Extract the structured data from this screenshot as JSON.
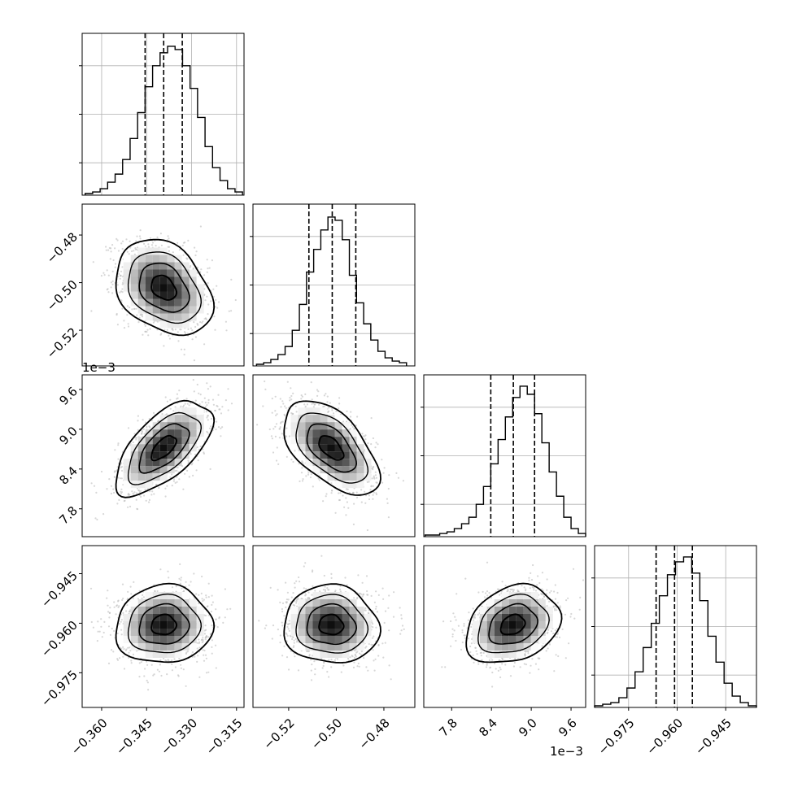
{
  "colors": {
    "axis": "#000000",
    "grid": "#b0b0b0",
    "scatter": "#bdbdbd",
    "contour": "#000000",
    "histogram": "#000000",
    "quantile": "#000000"
  },
  "figure": {
    "layout": "corner plot",
    "offset_label_row2": "1e−3",
    "offset_label_col3": "1e−3"
  },
  "chart_data": [
    {
      "type": "histogram",
      "panel": "1-1",
      "bins": [
        -0.3655,
        -0.363,
        -0.3605,
        -0.358,
        -0.3555,
        -0.353,
        -0.3505,
        -0.348,
        -0.3455,
        -0.343,
        -0.3405,
        -0.338,
        -0.3355,
        -0.333,
        -0.3305,
        -0.328,
        -0.3255,
        -0.323,
        -0.3205,
        -0.318,
        -0.3155,
        -0.313
      ],
      "counts": [
        0.01,
        0.02,
        0.04,
        0.08,
        0.13,
        0.22,
        0.35,
        0.51,
        0.67,
        0.8,
        0.88,
        0.92,
        0.9,
        0.8,
        0.66,
        0.48,
        0.3,
        0.17,
        0.09,
        0.04,
        0.02
      ],
      "quantiles": [
        -0.3455,
        -0.3393,
        -0.3331
      ],
      "xlim": [
        -0.3665,
        -0.3125
      ],
      "yticks": [
        0.2,
        0.5,
        0.8
      ],
      "grid": true
    },
    {
      "type": "scatter",
      "panel": "2-1",
      "xlim": [
        -0.3665,
        -0.3125
      ],
      "ylim": [
        -0.535,
        -0.467
      ],
      "ytick_labels": [
        "−0.48",
        "−0.50",
        "−0.52"
      ],
      "yticks": [
        -0.48,
        -0.5,
        -0.52
      ],
      "correlation": -0.3,
      "mean": [
        -0.3393,
        -0.5022
      ],
      "sd": [
        0.0075,
        0.0093
      ]
    },
    {
      "type": "histogram",
      "panel": "2-2",
      "bins": [
        -0.5335,
        -0.5305,
        -0.5275,
        -0.5245,
        -0.5215,
        -0.5185,
        -0.5155,
        -0.5125,
        -0.5095,
        -0.5065,
        -0.5035,
        -0.5005,
        -0.4975,
        -0.4945,
        -0.4915,
        -0.4885,
        -0.4855,
        -0.4825,
        -0.4795,
        -0.4765,
        -0.4735,
        -0.4705
      ],
      "counts": [
        0.01,
        0.02,
        0.04,
        0.07,
        0.12,
        0.22,
        0.38,
        0.58,
        0.72,
        0.84,
        0.92,
        0.9,
        0.78,
        0.56,
        0.39,
        0.26,
        0.16,
        0.09,
        0.05,
        0.03,
        0.02
      ],
      "quantiles": [
        -0.5115,
        -0.5017,
        -0.4918
      ],
      "xlim": [
        -0.535,
        -0.467
      ],
      "yticks": [
        0.2,
        0.5,
        0.8
      ],
      "grid": true
    },
    {
      "type": "scatter",
      "panel": "3-1",
      "xlim": [
        -0.3665,
        -0.3125
      ],
      "ylim": [
        7.38,
        9.82
      ],
      "ytick_labels": [
        "9.6",
        "9.0",
        "8.4",
        "7.8"
      ],
      "yticks": [
        9.6,
        9.0,
        8.4,
        7.8
      ],
      "correlation": 0.62,
      "mean": [
        -0.3393,
        8.72
      ],
      "sd": [
        0.0075,
        0.33
      ]
    },
    {
      "type": "scatter",
      "panel": "3-2",
      "xlim": [
        -0.535,
        -0.467
      ],
      "ylim": [
        7.38,
        9.82
      ],
      "correlation": -0.55,
      "mean": [
        -0.5022,
        8.72
      ],
      "sd": [
        0.0093,
        0.33
      ]
    },
    {
      "type": "histogram",
      "panel": "3-3",
      "bins": [
        7.4,
        7.51,
        7.62,
        7.73,
        7.84,
        7.95,
        8.06,
        8.17,
        8.28,
        8.39,
        8.5,
        8.61,
        8.72,
        8.83,
        8.94,
        9.05,
        9.16,
        9.27,
        9.38,
        9.49,
        9.6,
        9.71,
        9.82
      ],
      "counts": [
        0.01,
        0.01,
        0.02,
        0.03,
        0.05,
        0.08,
        0.12,
        0.2,
        0.31,
        0.45,
        0.6,
        0.74,
        0.86,
        0.93,
        0.88,
        0.76,
        0.58,
        0.4,
        0.25,
        0.12,
        0.05,
        0.02
      ],
      "quantiles": [
        8.39,
        8.73,
        9.05
      ],
      "xlim": [
        7.38,
        9.82
      ],
      "yticks": [
        0.2,
        0.5,
        0.8
      ],
      "grid": true
    },
    {
      "type": "scatter",
      "panel": "4-1",
      "xlim": [
        -0.3665,
        -0.3125
      ],
      "ylim": [
        -0.9855,
        -0.9365
      ],
      "ytick_labels": [
        "−0.945",
        "−0.960",
        "−0.975"
      ],
      "yticks": [
        -0.945,
        -0.96,
        -0.975
      ],
      "correlation": 0.05,
      "mean": [
        -0.3393,
        -0.9605
      ],
      "sd": [
        0.0075,
        0.0055
      ]
    },
    {
      "type": "scatter",
      "panel": "4-2",
      "xlim": [
        -0.535,
        -0.467
      ],
      "ylim": [
        -0.9855,
        -0.9365
      ],
      "xtick_labels": [
        "−0.52",
        "−0.50",
        "−0.48"
      ],
      "xticks": [
        -0.52,
        -0.5,
        -0.48
      ],
      "correlation": -0.05,
      "mean": [
        -0.5022,
        -0.9605
      ],
      "sd": [
        0.0093,
        0.0055
      ]
    },
    {
      "type": "scatter",
      "panel": "4-3",
      "xlim": [
        7.38,
        9.82
      ],
      "ylim": [
        -0.9855,
        -0.9365
      ],
      "xtick_labels": [
        "7.8",
        "8.4",
        "9.0",
        "9.6"
      ],
      "xticks": [
        7.8,
        8.4,
        9.0,
        9.6
      ],
      "correlation": 0.25,
      "mean": [
        8.72,
        -0.9605
      ],
      "sd": [
        0.33,
        0.0055
      ]
    },
    {
      "type": "histogram",
      "panel": "4-4",
      "bins": [
        -0.9855,
        -0.983,
        -0.9805,
        -0.978,
        -0.9755,
        -0.973,
        -0.9705,
        -0.968,
        -0.9655,
        -0.963,
        -0.9605,
        -0.958,
        -0.9555,
        -0.953,
        -0.9505,
        -0.948,
        -0.9455,
        -0.943,
        -0.9405,
        -0.938,
        -0.9355
      ],
      "counts": [
        0.01,
        0.02,
        0.03,
        0.06,
        0.12,
        0.22,
        0.37,
        0.52,
        0.69,
        0.82,
        0.9,
        0.93,
        0.83,
        0.66,
        0.44,
        0.28,
        0.15,
        0.07,
        0.03,
        0.01
      ],
      "quantiles": [
        -0.9665,
        -0.9608,
        -0.9553
      ],
      "xlim": [
        -0.9855,
        -0.9355
      ],
      "yticks": [
        0.2,
        0.5,
        0.8
      ],
      "grid": true,
      "xtick_labels": [
        "−0.975",
        "−0.960",
        "−0.945"
      ],
      "xticks": [
        -0.975,
        -0.96,
        -0.945
      ]
    }
  ],
  "x_axes": {
    "col1": {
      "tick_labels": [
        "−0.360",
        "−0.345",
        "−0.330",
        "−0.315"
      ],
      "ticks": [
        -0.36,
        -0.345,
        -0.33,
        -0.315
      ]
    }
  }
}
